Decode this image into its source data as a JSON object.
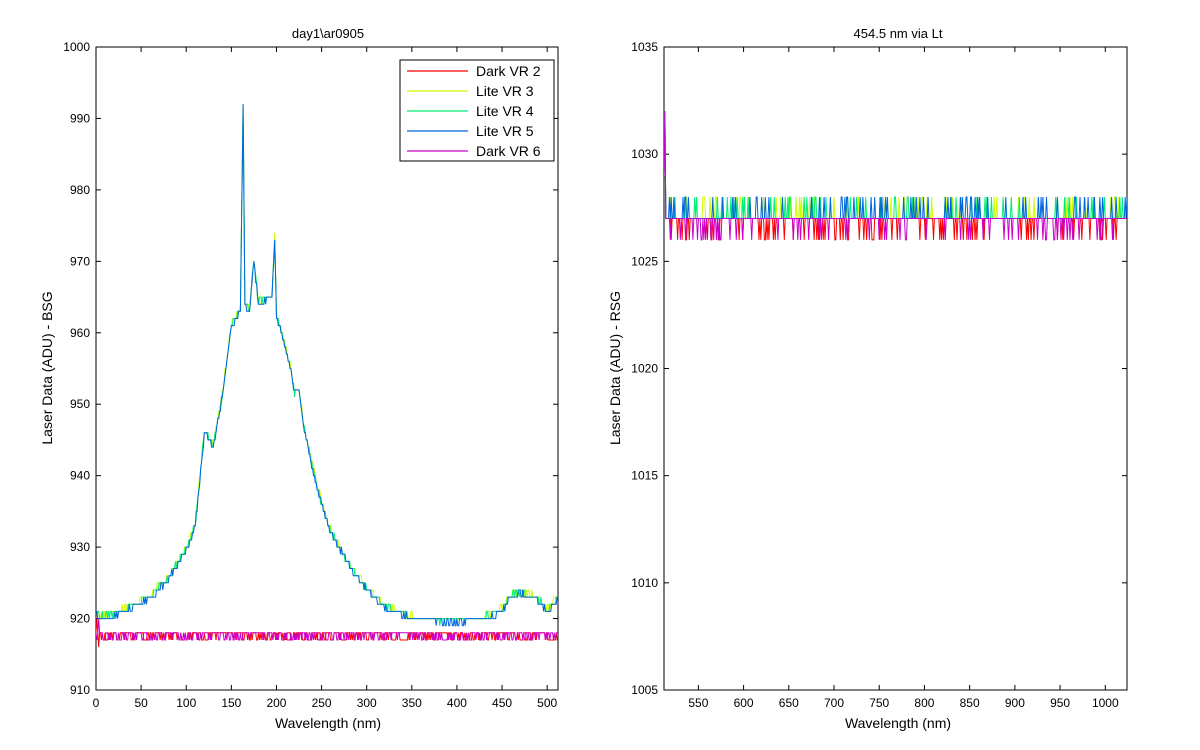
{
  "chart_data": [
    {
      "type": "line",
      "title": "day1\\ar0905",
      "xlabel": "Wavelength (nm)",
      "ylabel": "Laser Data (ADU) - BSG",
      "xlim": [
        0,
        512
      ],
      "ylim": [
        910,
        1000
      ],
      "xticks": [
        0,
        50,
        100,
        150,
        200,
        250,
        300,
        350,
        400,
        450,
        500
      ],
      "yticks": [
        910,
        920,
        930,
        940,
        950,
        960,
        970,
        980,
        990,
        1000
      ],
      "grid": false,
      "legend_position": "top-right",
      "series": [
        {
          "name": "Dark VR 2",
          "color": "#ff0000",
          "kind": "flat",
          "base": 918,
          "alt": 917,
          "x": [
            0,
            512
          ]
        },
        {
          "name": "Lite VR 3",
          "color": "#ccff00",
          "kind": "peak",
          "offset": 0.4,
          "x": [
            0,
            512
          ]
        },
        {
          "name": "Lite VR 4",
          "color": "#00ee77",
          "kind": "peak",
          "offset": 0.2,
          "x": [
            0,
            512
          ]
        },
        {
          "name": "Lite VR 5",
          "color": "#0066dd",
          "kind": "peak",
          "offset": 0.0,
          "x": [
            0,
            512
          ]
        },
        {
          "name": "Dark VR 6",
          "color": "#cc00cc",
          "kind": "flat",
          "base": 918,
          "alt": 917,
          "x": [
            0,
            512
          ]
        }
      ],
      "peak_profile": {
        "x": [
          0,
          5,
          20,
          40,
          60,
          80,
          100,
          110,
          120,
          130,
          140,
          150,
          160,
          163,
          165,
          170,
          175,
          180,
          195,
          198,
          200,
          205,
          210,
          215,
          220,
          225,
          230,
          240,
          250,
          260,
          280,
          300,
          320,
          350,
          380,
          400,
          430,
          450,
          460,
          470,
          480,
          490,
          500,
          505,
          512
        ],
        "y": [
          921,
          920,
          920.5,
          921.5,
          923,
          925.5,
          929.5,
          933,
          946,
          944,
          951,
          961,
          963,
          992,
          964,
          963,
          970,
          964,
          965,
          973,
          962,
          960,
          958,
          955,
          951.5,
          952,
          947,
          941,
          936,
          932,
          927.5,
          924,
          921.5,
          920,
          919.5,
          919.5,
          920,
          921,
          923,
          923.5,
          923,
          922.5,
          921,
          921.5,
          923
        ]
      }
    },
    {
      "type": "line",
      "title": "454.5 nm via Lt",
      "xlabel": "Wavelength (nm)",
      "ylabel": "Laser Data (ADU) - RSG",
      "xlim": [
        512,
        1024
      ],
      "ylim": [
        1005,
        1035
      ],
      "xticks": [
        550,
        600,
        650,
        700,
        750,
        800,
        850,
        900,
        950,
        1000
      ],
      "yticks": [
        1005,
        1010,
        1015,
        1020,
        1025,
        1030,
        1035
      ],
      "grid": false,
      "series": [
        {
          "name": "Dark VR 2",
          "color": "#ff0000",
          "base": 1027,
          "alt": 1026
        },
        {
          "name": "Lite VR 3",
          "color": "#ccff00",
          "base": 1027,
          "alt": 1028
        },
        {
          "name": "Lite VR 4",
          "color": "#00ee77",
          "base": 1027,
          "alt": 1028
        },
        {
          "name": "Lite VR 5",
          "color": "#0066dd",
          "base": 1027,
          "alt": 1028
        },
        {
          "name": "Dark VR 6",
          "color": "#cc00cc",
          "base": 1027,
          "alt": 1026
        }
      ],
      "start_spike": {
        "x": [
          512,
          513,
          514,
          516
        ],
        "y": [
          1029,
          1032,
          1027,
          1027
        ]
      }
    }
  ]
}
